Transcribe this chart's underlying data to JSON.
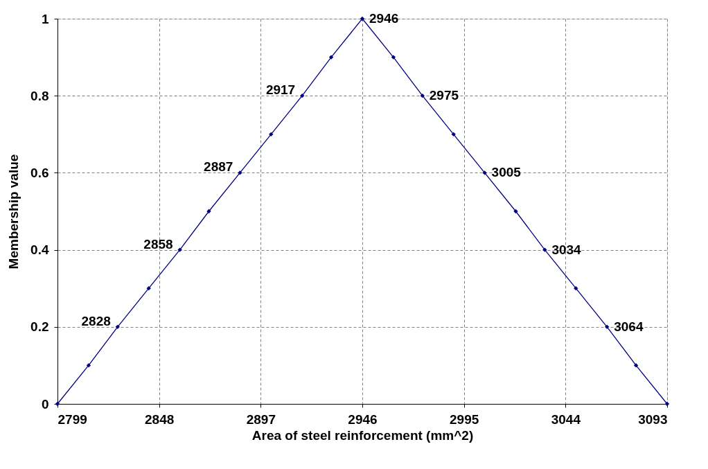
{
  "chart_data": {
    "type": "line",
    "xlabel": "Area of steel reinforcement (mm^2)",
    "ylabel": "Membership value",
    "x": [
      2799,
      2814,
      2828,
      2843,
      2858,
      2872,
      2887,
      2902,
      2917,
      2931,
      2946,
      2961,
      2975,
      2990,
      3005,
      3020,
      3034,
      3049,
      3064,
      3078,
      3093
    ],
    "series": [
      {
        "color": "#000080",
        "values": [
          0,
          0.1,
          0.2,
          0.3,
          0.4,
          0.5,
          0.6,
          0.7,
          0.8,
          0.9,
          1,
          0.9,
          0.8,
          0.7,
          0.6,
          0.5,
          0.4,
          0.3,
          0.2,
          0.1,
          0
        ]
      }
    ],
    "xlim": [
      2799,
      3093
    ],
    "xticks": [
      2799,
      2848,
      2897,
      2946,
      2995,
      3044,
      3093
    ],
    "ylim": [
      0,
      1
    ],
    "yticks": [
      0,
      0.2,
      0.4,
      0.6,
      0.8,
      1
    ],
    "grid": true,
    "marker": "diamond",
    "line_style": "solid",
    "annotations": [
      {
        "text": "2828",
        "x": 2828,
        "y": 0.2
      },
      {
        "text": "2858",
        "x": 2858,
        "y": 0.4
      },
      {
        "text": "2887",
        "x": 2887,
        "y": 0.6
      },
      {
        "text": "2917",
        "x": 2917,
        "y": 0.8
      },
      {
        "text": "2946",
        "x": 2946,
        "y": 1
      },
      {
        "text": "2975",
        "x": 2975,
        "y": 0.8
      },
      {
        "text": "3005",
        "x": 3005,
        "y": 0.6
      },
      {
        "text": "3034",
        "x": 3034,
        "y": 0.4
      },
      {
        "text": "3064",
        "x": 3064,
        "y": 0.2
      }
    ]
  }
}
